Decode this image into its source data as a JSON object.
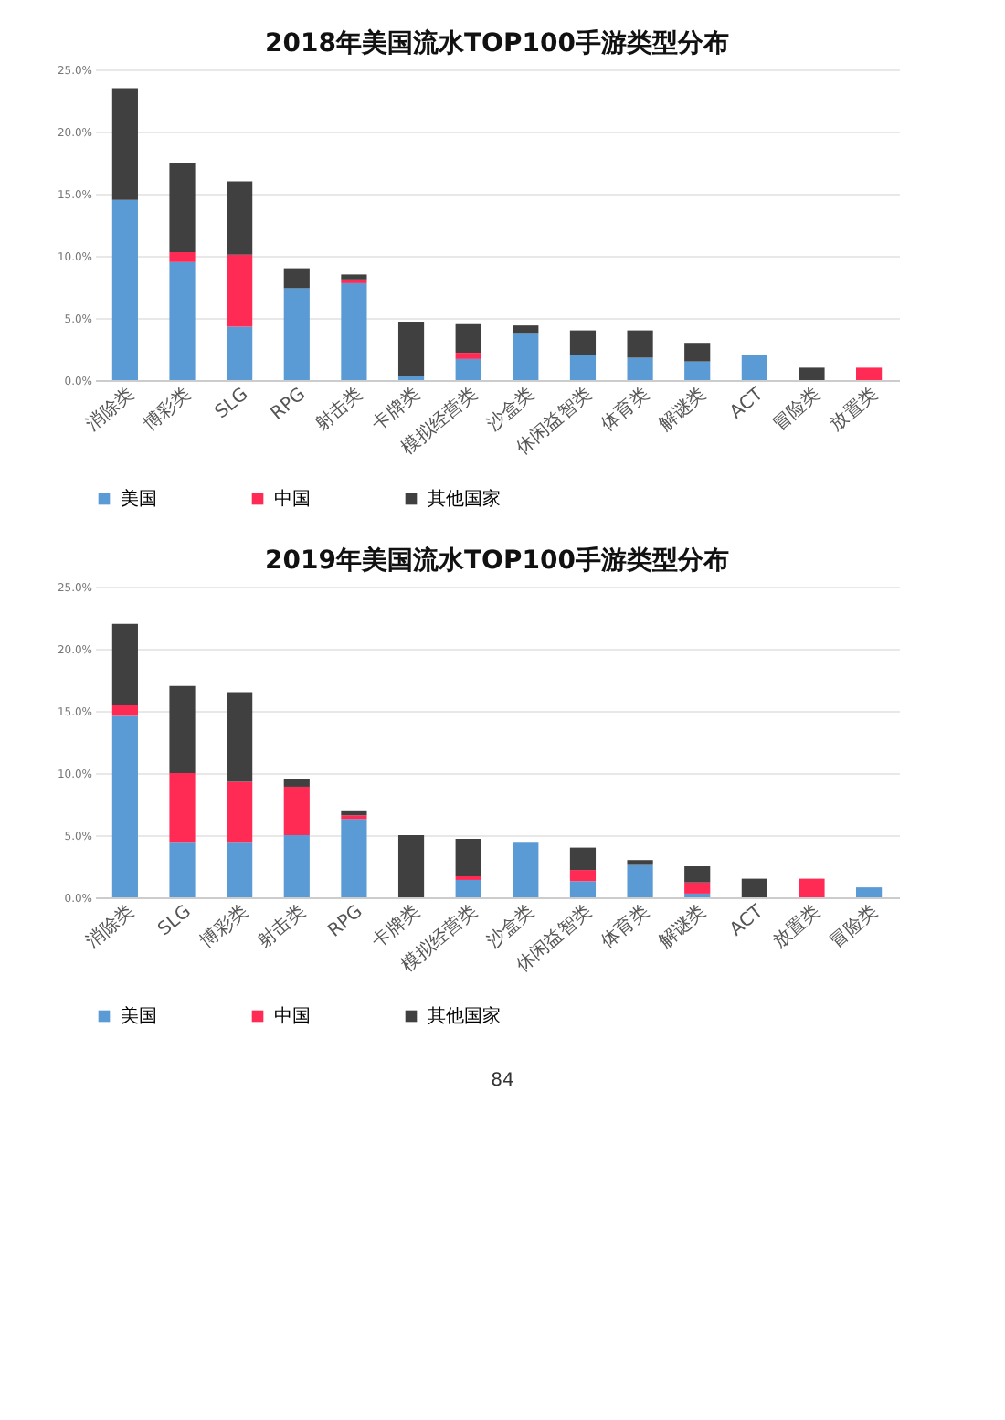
{
  "chart_data": [
    {
      "type": "bar",
      "title": "2018年美国流水TOP100手游类型分布",
      "stacked": true,
      "legend": "bottom",
      "grid": "y",
      "categories": [
        "消除类",
        "博彩类",
        "SLG",
        "RPG",
        "射击类",
        "卡牌类",
        "模拟经营类",
        "沙盒类",
        "休闲益智类",
        "体育类",
        "解谜类",
        "ACT",
        "冒险类",
        "放置类"
      ],
      "ylim": [
        0,
        25
      ],
      "yticks": [
        {
          "value": 0,
          "label": "0.0%"
        },
        {
          "value": 5,
          "label": "5.0%"
        },
        {
          "value": 10,
          "label": "10.0%"
        },
        {
          "value": 15,
          "label": "15.0%"
        },
        {
          "value": 20,
          "label": "20.0%"
        },
        {
          "value": 25,
          "label": "25.0%"
        }
      ],
      "series": [
        {
          "name": "美国",
          "color": "#5b9bd5",
          "values": [
            14.5,
            9.5,
            4.3,
            7.4,
            7.8,
            0.3,
            1.7,
            3.8,
            2.0,
            1.8,
            1.5,
            2.0,
            null,
            null
          ]
        },
        {
          "name": "中国",
          "color": "#ff2b55",
          "values": [
            null,
            0.8,
            5.8,
            null,
            0.3,
            null,
            0.5,
            null,
            null,
            null,
            null,
            null,
            null,
            1.0
          ]
        },
        {
          "name": "其他国家",
          "color": "#404040",
          "values": [
            9.0,
            7.2,
            5.9,
            1.6,
            0.4,
            4.4,
            2.3,
            0.6,
            2.0,
            2.2,
            1.5,
            null,
            1.0,
            null
          ]
        }
      ]
    },
    {
      "type": "bar",
      "title": "2019年美国流水TOP100手游类型分布",
      "stacked": true,
      "legend": "bottom",
      "grid": "y",
      "categories": [
        "消除类",
        "SLG",
        "博彩类",
        "射击类",
        "RPG",
        "卡牌类",
        "模拟经营类",
        "沙盒类",
        "休闲益智类",
        "体育类",
        "解谜类",
        "ACT",
        "放置类",
        "冒险类"
      ],
      "ylim": [
        0,
        25
      ],
      "yticks": [
        {
          "value": 0,
          "label": "0.0%"
        },
        {
          "value": 5,
          "label": "5.0%"
        },
        {
          "value": 10,
          "label": "10.0%"
        },
        {
          "value": 15,
          "label": "15.0%"
        },
        {
          "value": 20,
          "label": "20.0%"
        },
        {
          "value": 25,
          "label": "25.0%"
        }
      ],
      "annotations": [
        "84"
      ],
      "series": [
        {
          "name": "美国",
          "color": "#5b9bd5",
          "values": [
            14.6,
            4.4,
            4.4,
            5.0,
            6.3,
            null,
            1.4,
            4.4,
            1.3,
            2.6,
            0.3,
            null,
            null,
            0.8
          ]
        },
        {
          "name": "中国",
          "color": "#ff2b55",
          "values": [
            0.9,
            5.6,
            4.9,
            3.9,
            0.3,
            null,
            0.3,
            null,
            0.9,
            null,
            0.9,
            null,
            1.5,
            null
          ]
        },
        {
          "name": "其他国家",
          "color": "#404040",
          "values": [
            6.5,
            7.0,
            7.2,
            0.6,
            0.4,
            5.0,
            3.0,
            null,
            1.8,
            0.4,
            1.3,
            1.5,
            null,
            null
          ]
        }
      ]
    }
  ]
}
